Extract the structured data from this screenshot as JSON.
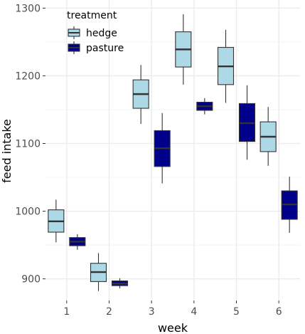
{
  "chart_data": {
    "type": "boxplot",
    "xlabel": "week",
    "ylabel": "feed intake",
    "categories": [
      "1",
      "2",
      "3",
      "4",
      "5",
      "6"
    ],
    "ylim": [
      868,
      1312
    ],
    "yticks": [
      900,
      1000,
      1100,
      1200,
      1300
    ],
    "grid": true,
    "legend": {
      "title": "treatment",
      "placement": "top-left"
    },
    "series": [
      {
        "name": "hedge",
        "color": "#add8e6",
        "boxes": [
          {
            "week": "1",
            "min": 954,
            "q1": 969,
            "median": 985,
            "q3": 1002,
            "max": 1017
          },
          {
            "week": "2",
            "min": 882,
            "q1": 896,
            "median": 910,
            "q3": 923,
            "max": 938
          },
          {
            "week": "3",
            "min": 1129,
            "q1": 1152,
            "median": 1173,
            "q3": 1194,
            "max": 1216
          },
          {
            "week": "4",
            "min": 1187,
            "q1": 1213,
            "median": 1239,
            "q3": 1265,
            "max": 1291
          },
          {
            "week": "5",
            "min": 1160,
            "q1": 1187,
            "median": 1214,
            "q3": 1242,
            "max": 1268
          },
          {
            "week": "6",
            "min": 1067,
            "q1": 1088,
            "median": 1110,
            "q3": 1132,
            "max": 1154
          }
        ]
      },
      {
        "name": "pasture",
        "color": "#00008b",
        "boxes": [
          {
            "week": "1",
            "min": 943,
            "q1": 949,
            "median": 955,
            "q3": 961,
            "max": 966
          },
          {
            "week": "2",
            "min": 886,
            "q1": 890,
            "median": 893,
            "q3": 897,
            "max": 901
          },
          {
            "week": "3",
            "min": 1041,
            "q1": 1066,
            "median": 1093,
            "q3": 1119,
            "max": 1145
          },
          {
            "week": "4",
            "min": 1143,
            "q1": 1149,
            "median": 1155,
            "q3": 1161,
            "max": 1167
          },
          {
            "week": "5",
            "min": 1076,
            "q1": 1103,
            "median": 1130,
            "q3": 1159,
            "max": 1186
          },
          {
            "week": "6",
            "min": 968,
            "q1": 988,
            "median": 1010,
            "q3": 1030,
            "max": 1051
          }
        ]
      }
    ]
  }
}
